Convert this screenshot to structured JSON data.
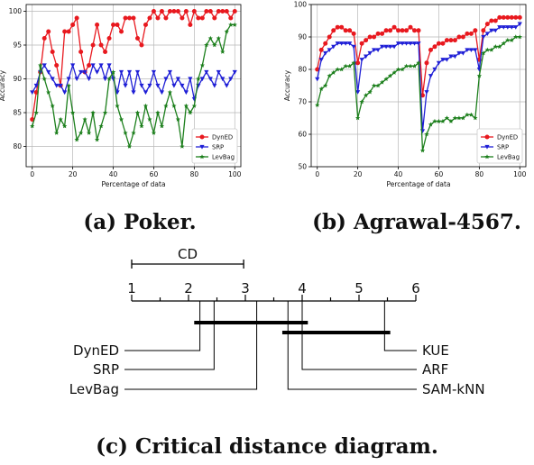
{
  "chart_data": [
    {
      "id": "poker",
      "type": "line",
      "caption": "(a) Poker.",
      "xlabel": "Percentage of data",
      "ylabel": "Accuracy",
      "xlim": [
        -3,
        103
      ],
      "ylim": [
        77,
        101
      ],
      "xticks": [
        0,
        20,
        40,
        60,
        80,
        100
      ],
      "yticks": [
        80,
        85,
        90,
        95,
        100
      ],
      "grid": true,
      "legend_position": "lower-right",
      "x": [
        0,
        2,
        4,
        6,
        8,
        10,
        12,
        14,
        16,
        18,
        20,
        22,
        24,
        26,
        28,
        30,
        32,
        34,
        36,
        38,
        40,
        42,
        44,
        46,
        48,
        50,
        52,
        54,
        56,
        58,
        60,
        62,
        64,
        66,
        68,
        70,
        72,
        74,
        76,
        78,
        80,
        82,
        84,
        86,
        88,
        90,
        92,
        94,
        96,
        98,
        100
      ],
      "series": [
        {
          "name": "DynED",
          "color": "#e8191f",
          "marker": "circle",
          "values": [
            84,
            88,
            91,
            96,
            97,
            94,
            92,
            89,
            97,
            97,
            98,
            99,
            94,
            91,
            92,
            95,
            98,
            95,
            94,
            96,
            98,
            98,
            97,
            99,
            99,
            99,
            96,
            95,
            98,
            99,
            100,
            99,
            100,
            99,
            100,
            100,
            100,
            99,
            100,
            98,
            100,
            99,
            99,
            100,
            100,
            99,
            100,
            100,
            100,
            99,
            100
          ]
        },
        {
          "name": "SRP",
          "color": "#1f1fd6",
          "marker": "triangle-down",
          "values": [
            88,
            89,
            91,
            92,
            91,
            90,
            89,
            89,
            88,
            90,
            92,
            90,
            91,
            91,
            90,
            92,
            91,
            92,
            90,
            92,
            90,
            88,
            91,
            89,
            91,
            88,
            91,
            89,
            88,
            89,
            91,
            89,
            88,
            90,
            91,
            89,
            90,
            89,
            88,
            90,
            87,
            89,
            90,
            91,
            90,
            89,
            91,
            90,
            89,
            90,
            91
          ]
        },
        {
          "name": "LevBag",
          "color": "#1c7f1c",
          "marker": "star",
          "values": [
            83,
            85,
            92,
            90,
            88,
            86,
            82,
            84,
            83,
            89,
            85,
            81,
            82,
            84,
            82,
            85,
            81,
            83,
            85,
            90,
            91,
            86,
            84,
            82,
            80,
            82,
            85,
            83,
            86,
            84,
            82,
            85,
            83,
            86,
            88,
            86,
            84,
            80,
            86,
            85,
            86,
            90,
            92,
            95,
            96,
            95,
            96,
            94,
            97,
            98,
            98
          ]
        }
      ]
    },
    {
      "id": "agrawal",
      "type": "line",
      "caption": "(b) Agrawal-4567.",
      "xlabel": "Percentage of data",
      "ylabel": "Accuracy",
      "xlim": [
        -3,
        103
      ],
      "ylim": [
        50,
        100
      ],
      "xticks": [
        0,
        20,
        40,
        60,
        80,
        100
      ],
      "yticks": [
        50,
        60,
        70,
        80,
        90,
        100
      ],
      "grid": true,
      "legend_position": "lower-right",
      "x": [
        0,
        2,
        4,
        6,
        8,
        10,
        12,
        14,
        16,
        18,
        20,
        22,
        24,
        26,
        28,
        30,
        32,
        34,
        36,
        38,
        40,
        42,
        44,
        46,
        48,
        50,
        52,
        54,
        56,
        58,
        60,
        62,
        64,
        66,
        68,
        70,
        72,
        74,
        76,
        78,
        80,
        82,
        84,
        86,
        88,
        90,
        92,
        94,
        96,
        98,
        100
      ],
      "series": [
        {
          "name": "DynED",
          "color": "#e8191f",
          "marker": "circle",
          "values": [
            80,
            86,
            88,
            90,
            92,
            93,
            93,
            92,
            92,
            91,
            82,
            88,
            89,
            90,
            90,
            91,
            91,
            92,
            92,
            93,
            92,
            92,
            92,
            93,
            92,
            92,
            72,
            82,
            86,
            87,
            88,
            88,
            89,
            89,
            89,
            90,
            90,
            91,
            91,
            92,
            83,
            92,
            94,
            95,
            95,
            96,
            96,
            96,
            96,
            96,
            96
          ]
        },
        {
          "name": "SRP",
          "color": "#1f1fd6",
          "marker": "triangle-down",
          "values": [
            77,
            83,
            85,
            86,
            87,
            88,
            88,
            88,
            88,
            87,
            73,
            83,
            84,
            85,
            86,
            86,
            87,
            87,
            87,
            87,
            88,
            88,
            88,
            88,
            88,
            88,
            61,
            73,
            78,
            80,
            82,
            83,
            83,
            84,
            84,
            85,
            85,
            86,
            86,
            86,
            80,
            90,
            91,
            92,
            92,
            93,
            93,
            93,
            93,
            93,
            94
          ]
        },
        {
          "name": "LevBag",
          "color": "#1c7f1c",
          "marker": "star",
          "values": [
            69,
            74,
            75,
            78,
            79,
            80,
            80,
            81,
            81,
            82,
            65,
            70,
            72,
            73,
            75,
            75,
            76,
            77,
            78,
            79,
            80,
            80,
            81,
            81,
            81,
            82,
            55,
            60,
            63,
            64,
            64,
            64,
            65,
            64,
            65,
            65,
            65,
            66,
            66,
            65,
            78,
            85,
            86,
            86,
            87,
            87,
            88,
            89,
            89,
            90,
            90
          ]
        }
      ]
    },
    {
      "id": "cd-diagram",
      "type": "critical-distance",
      "caption": "(c) Critical distance diagram.",
      "cd_label": "CD",
      "cd_value": 1.97,
      "axis_ticks": [
        1,
        2,
        3,
        4,
        5,
        6
      ],
      "methods": [
        {
          "name": "DynED",
          "rank": 2.2,
          "side": "left"
        },
        {
          "name": "SRP",
          "rank": 2.45,
          "side": "left"
        },
        {
          "name": "LevBag",
          "rank": 3.2,
          "side": "left"
        },
        {
          "name": "KUE",
          "rank": 5.45,
          "side": "right"
        },
        {
          "name": "ARF",
          "rank": 4.0,
          "side": "right"
        },
        {
          "name": "SAM-kNN",
          "rank": 3.75,
          "side": "right"
        }
      ],
      "cliques": [
        [
          2.1,
          4.1
        ],
        [
          3.65,
          5.55
        ]
      ]
    }
  ]
}
